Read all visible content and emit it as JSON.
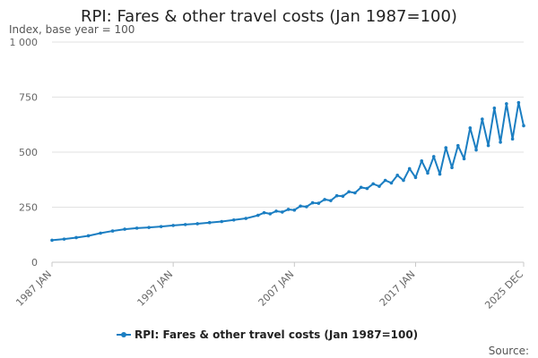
{
  "chart_data": {
    "type": "line",
    "title": "RPI: Fares & other travel costs (Jan 1987=100)",
    "subtitle": "Index, base year = 100",
    "ylabel": "Index, base year = 100",
    "xlabel": "",
    "ylim": [
      0,
      1000
    ],
    "y_ticks": [
      {
        "value": 0,
        "label": "0"
      },
      {
        "value": 250,
        "label": "250"
      },
      {
        "value": 500,
        "label": "500"
      },
      {
        "value": 750,
        "label": "750"
      },
      {
        "value": 1000,
        "label": "1 000"
      }
    ],
    "x_ticks": [
      {
        "value": 1987.0,
        "label": "1987 JAN"
      },
      {
        "value": 1997.0,
        "label": "1997 JAN"
      },
      {
        "value": 2007.0,
        "label": "2007 JAN"
      },
      {
        "value": 2017.0,
        "label": "2017 JAN"
      },
      {
        "value": 2025.917,
        "label": "2025 DEC"
      }
    ],
    "x_range": [
      1987.0,
      2025.917
    ],
    "series": [
      {
        "name": "RPI: Fares & other travel costs (Jan 1987=100)",
        "color": "#1b7ec2",
        "x": [
          1987.0,
          1988.0,
          1989.0,
          1990.0,
          1991.0,
          1992.0,
          1993.0,
          1994.0,
          1995.0,
          1996.0,
          1997.0,
          1998.0,
          1999.0,
          2000.0,
          2001.0,
          2002.0,
          2003.0,
          2004.0,
          2004.5,
          2005.0,
          2005.5,
          2006.0,
          2006.5,
          2007.0,
          2007.5,
          2008.0,
          2008.5,
          2009.0,
          2009.5,
          2010.0,
          2010.5,
          2011.0,
          2011.5,
          2012.0,
          2012.5,
          2013.0,
          2013.5,
          2014.0,
          2014.5,
          2015.0,
          2015.5,
          2016.0,
          2016.5,
          2017.0,
          2017.5,
          2018.0,
          2018.5,
          2019.0,
          2019.5,
          2020.0,
          2020.5,
          2021.0,
          2021.5,
          2022.0,
          2022.5,
          2023.0,
          2023.5,
          2024.0,
          2024.5,
          2025.0,
          2025.5,
          2025.917
        ],
        "values": [
          100,
          105,
          112,
          120,
          132,
          142,
          150,
          155,
          158,
          162,
          167,
          171,
          175,
          180,
          185,
          192,
          199,
          213,
          225,
          220,
          232,
          228,
          240,
          237,
          255,
          252,
          270,
          268,
          285,
          280,
          302,
          300,
          320,
          315,
          340,
          335,
          356,
          345,
          372,
          360,
          395,
          372,
          425,
          385,
          460,
          405,
          480,
          400,
          520,
          430,
          530,
          470,
          610,
          510,
          650,
          530,
          700,
          545,
          720,
          560,
          725,
          620
        ]
      }
    ]
  },
  "legend": {
    "label": "RPI: Fares & other travel costs (Jan 1987=100)"
  },
  "footer": {
    "source_label": "Source:"
  }
}
